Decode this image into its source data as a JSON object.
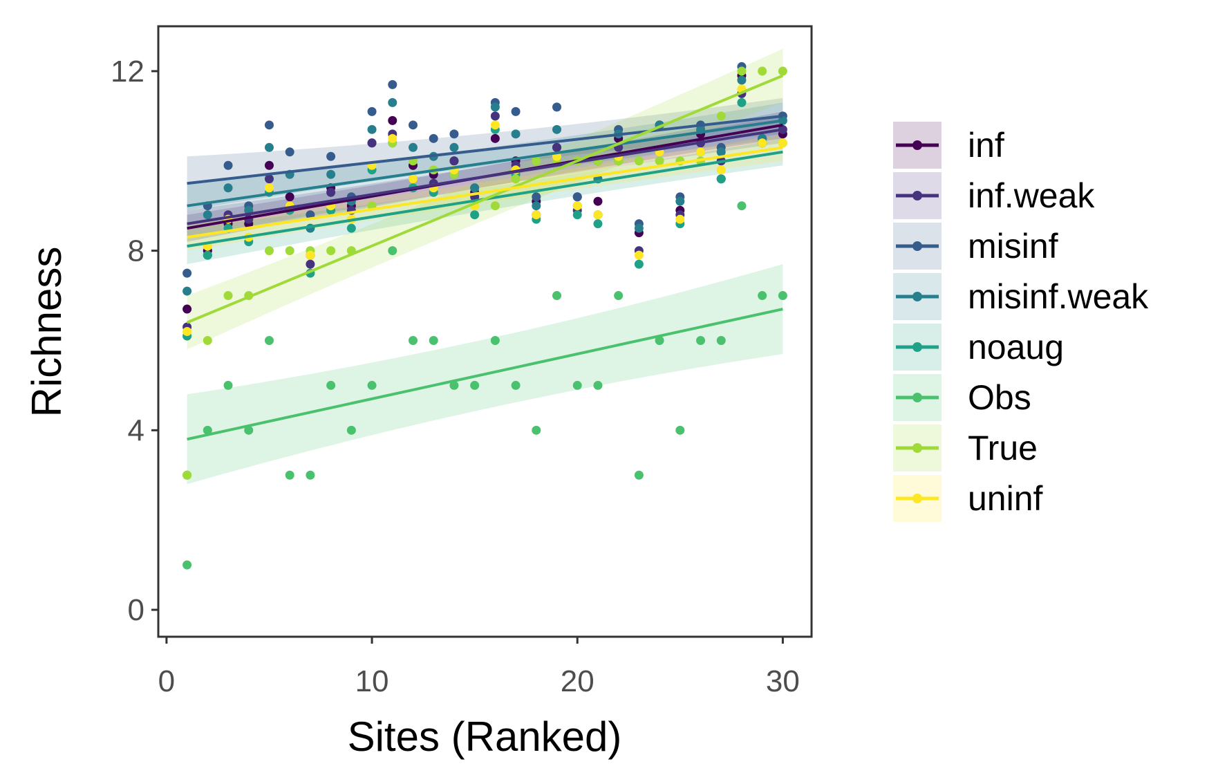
{
  "chart_data": {
    "type": "scatter",
    "xlabel": "Sites (Ranked)",
    "ylabel": "Richness",
    "xlim": [
      -0.4,
      31.4
    ],
    "ylim": [
      -0.6,
      13.0
    ],
    "xticks": [
      0,
      10,
      20,
      30
    ],
    "yticks": [
      0,
      4,
      8,
      12
    ],
    "grid": false,
    "legend_position": "right",
    "series": [
      {
        "name": "inf",
        "color": "#440154",
        "fit": {
          "x": [
            1,
            30
          ],
          "y": [
            8.5,
            10.8
          ],
          "band": [
            0.3,
            0.3
          ]
        },
        "points": [
          [
            1,
            6.7
          ],
          [
            2,
            8.0
          ],
          [
            3,
            8.6
          ],
          [
            4,
            8.6
          ],
          [
            5,
            9.9
          ],
          [
            6,
            9.2
          ],
          [
            7,
            7.9
          ],
          [
            8,
            9.4
          ],
          [
            9,
            9.0
          ],
          [
            10,
            10.4
          ],
          [
            11,
            10.9
          ],
          [
            12,
            9.9
          ],
          [
            13,
            9.7
          ],
          [
            14,
            10.0
          ],
          [
            15,
            9.3
          ],
          [
            16,
            10.5
          ],
          [
            17,
            10.0
          ],
          [
            18,
            9.1
          ],
          [
            19,
            10.3
          ],
          [
            20,
            9.2
          ],
          [
            21,
            9.1
          ],
          [
            22,
            10.5
          ],
          [
            23,
            8.4
          ],
          [
            24,
            10.8
          ],
          [
            25,
            8.9
          ],
          [
            26,
            10.6
          ],
          [
            27,
            9.6
          ],
          [
            28,
            11.9
          ],
          [
            29,
            10.4
          ],
          [
            30,
            10.6
          ]
        ]
      },
      {
        "name": "inf.weak",
        "color": "#46337e",
        "fit": {
          "x": [
            1,
            30
          ],
          "y": [
            8.6,
            10.7
          ],
          "band": [
            0.3,
            0.3
          ]
        },
        "points": [
          [
            1,
            6.3
          ],
          [
            2,
            7.9
          ],
          [
            3,
            8.8
          ],
          [
            4,
            8.7
          ],
          [
            5,
            9.6
          ],
          [
            6,
            9.0
          ],
          [
            7,
            7.7
          ],
          [
            8,
            9.3
          ],
          [
            9,
            8.9
          ],
          [
            10,
            10.4
          ],
          [
            11,
            10.6
          ],
          [
            12,
            9.6
          ],
          [
            13,
            9.5
          ],
          [
            14,
            10.0
          ],
          [
            15,
            9.2
          ],
          [
            16,
            11.0
          ],
          [
            17,
            9.9
          ],
          [
            18,
            8.8
          ],
          [
            19,
            10.3
          ],
          [
            20,
            8.9
          ],
          [
            21,
            8.8
          ],
          [
            22,
            10.3
          ],
          [
            23,
            8.0
          ],
          [
            24,
            10.8
          ],
          [
            25,
            8.8
          ],
          [
            26,
            10.4
          ],
          [
            27,
            10.0
          ],
          [
            28,
            11.5
          ],
          [
            29,
            10.5
          ],
          [
            30,
            10.7
          ]
        ]
      },
      {
        "name": "misinf",
        "color": "#365c8d",
        "fit": {
          "x": [
            1,
            30
          ],
          "y": [
            9.5,
            11.0
          ],
          "band": [
            0.6,
            0.4
          ]
        },
        "points": [
          [
            1,
            7.5
          ],
          [
            2,
            9.0
          ],
          [
            3,
            9.9
          ],
          [
            4,
            9.0
          ],
          [
            5,
            10.8
          ],
          [
            6,
            10.2
          ],
          [
            7,
            8.8
          ],
          [
            8,
            10.1
          ],
          [
            9,
            9.2
          ],
          [
            10,
            11.1
          ],
          [
            11,
            11.7
          ],
          [
            12,
            10.8
          ],
          [
            13,
            10.5
          ],
          [
            14,
            10.6
          ],
          [
            15,
            9.4
          ],
          [
            16,
            11.3
          ],
          [
            17,
            11.1
          ],
          [
            18,
            9.2
          ],
          [
            19,
            11.2
          ],
          [
            20,
            9.2
          ],
          [
            21,
            10.0
          ],
          [
            22,
            10.7
          ],
          [
            23,
            8.6
          ],
          [
            24,
            10.8
          ],
          [
            25,
            9.2
          ],
          [
            26,
            10.8
          ],
          [
            27,
            10.3
          ],
          [
            28,
            12.1
          ],
          [
            29,
            10.5
          ],
          [
            30,
            11.0
          ]
        ]
      },
      {
        "name": "misinf.weak",
        "color": "#277f8e",
        "fit": {
          "x": [
            1,
            30
          ],
          "y": [
            9.0,
            10.9
          ],
          "band": [
            0.5,
            0.4
          ]
        },
        "points": [
          [
            1,
            7.1
          ],
          [
            2,
            8.8
          ],
          [
            3,
            9.4
          ],
          [
            4,
            8.9
          ],
          [
            5,
            10.3
          ],
          [
            6,
            9.7
          ],
          [
            7,
            8.5
          ],
          [
            8,
            9.7
          ],
          [
            9,
            9.1
          ],
          [
            10,
            10.7
          ],
          [
            11,
            11.3
          ],
          [
            12,
            10.3
          ],
          [
            13,
            10.1
          ],
          [
            14,
            10.3
          ],
          [
            15,
            9.4
          ],
          [
            16,
            11.2
          ],
          [
            17,
            10.6
          ],
          [
            18,
            9.0
          ],
          [
            19,
            10.7
          ],
          [
            20,
            9.0
          ],
          [
            21,
            9.6
          ],
          [
            22,
            10.6
          ],
          [
            23,
            8.5
          ],
          [
            24,
            10.8
          ],
          [
            25,
            9.1
          ],
          [
            26,
            10.7
          ],
          [
            27,
            10.2
          ],
          [
            28,
            11.8
          ],
          [
            29,
            10.5
          ],
          [
            30,
            10.9
          ]
        ]
      },
      {
        "name": "noaug",
        "color": "#1fa187",
        "fit": {
          "x": [
            1,
            30
          ],
          "y": [
            8.1,
            10.2
          ],
          "band": [
            0.4,
            0.3
          ]
        },
        "points": [
          [
            1,
            6.1
          ],
          [
            2,
            7.9
          ],
          [
            3,
            8.5
          ],
          [
            4,
            8.2
          ],
          [
            5,
            9.3
          ],
          [
            6,
            8.9
          ],
          [
            7,
            7.5
          ],
          [
            8,
            8.9
          ],
          [
            9,
            8.5
          ],
          [
            10,
            9.8
          ],
          [
            11,
            10.4
          ],
          [
            12,
            9.4
          ],
          [
            13,
            9.3
          ],
          [
            14,
            9.7
          ],
          [
            15,
            8.8
          ],
          [
            16,
            10.7
          ],
          [
            17,
            9.7
          ],
          [
            18,
            8.7
          ],
          [
            19,
            10.0
          ],
          [
            20,
            8.8
          ],
          [
            21,
            8.6
          ],
          [
            22,
            10.0
          ],
          [
            23,
            7.7
          ],
          [
            24,
            10.2
          ],
          [
            25,
            8.6
          ],
          [
            26,
            10.2
          ],
          [
            27,
            9.6
          ],
          [
            28,
            11.3
          ],
          [
            29,
            10.4
          ],
          [
            30,
            10.4
          ]
        ]
      },
      {
        "name": "Obs",
        "color": "#4ac16d",
        "fit": {
          "x": [
            1,
            30
          ],
          "y": [
            3.8,
            6.7
          ],
          "band": [
            1.0,
            1.0
          ]
        },
        "points": [
          [
            1,
            3.0
          ],
          [
            1,
            1.0
          ],
          [
            2,
            4.0
          ],
          [
            3,
            5.0
          ],
          [
            4,
            4.0
          ],
          [
            5,
            6.0
          ],
          [
            6,
            3.0
          ],
          [
            7,
            3.0
          ],
          [
            8,
            5.0
          ],
          [
            9,
            4.0
          ],
          [
            10,
            5.0
          ],
          [
            11,
            8.0
          ],
          [
            12,
            6.0
          ],
          [
            13,
            6.0
          ],
          [
            14,
            5.0
          ],
          [
            15,
            5.0
          ],
          [
            16,
            6.0
          ],
          [
            17,
            5.0
          ],
          [
            18,
            4.0
          ],
          [
            19,
            7.0
          ],
          [
            20,
            5.0
          ],
          [
            21,
            5.0
          ],
          [
            22,
            7.0
          ],
          [
            23,
            3.0
          ],
          [
            24,
            6.0
          ],
          [
            25,
            4.0
          ],
          [
            26,
            6.0
          ],
          [
            27,
            6.0
          ],
          [
            28,
            9.0
          ],
          [
            29,
            7.0
          ],
          [
            30,
            7.0
          ]
        ]
      },
      {
        "name": "True",
        "color": "#a0da39",
        "fit": {
          "x": [
            1,
            30
          ],
          "y": [
            6.4,
            11.9
          ],
          "band": [
            0.6,
            0.6
          ]
        },
        "points": [
          [
            1,
            3.0
          ],
          [
            2,
            6.0
          ],
          [
            3,
            7.0
          ],
          [
            4,
            7.0
          ],
          [
            5,
            8.0
          ],
          [
            6,
            8.0
          ],
          [
            7,
            8.0
          ],
          [
            8,
            8.0
          ],
          [
            9,
            8.0
          ],
          [
            10,
            9.0
          ],
          [
            11,
            10.4
          ],
          [
            12,
            10.0
          ],
          [
            13,
            9.8
          ],
          [
            14,
            9.7
          ],
          [
            15,
            9.0
          ],
          [
            16,
            9.0
          ],
          [
            17,
            9.6
          ],
          [
            18,
            10.0
          ],
          [
            19,
            10.0
          ],
          [
            20,
            10.0
          ],
          [
            21,
            10.0
          ],
          [
            22,
            10.0
          ],
          [
            23,
            10.0
          ],
          [
            24,
            10.0
          ],
          [
            25,
            10.0
          ],
          [
            26,
            10.0
          ],
          [
            27,
            11.0
          ],
          [
            28,
            12.0
          ],
          [
            29,
            12.0
          ],
          [
            30,
            12.0
          ]
        ]
      },
      {
        "name": "uninf",
        "color": "#fde725",
        "fit": {
          "x": [
            1,
            30
          ],
          "y": [
            8.3,
            10.3
          ],
          "band": [
            0.3,
            0.3
          ]
        },
        "points": [
          [
            1,
            6.2
          ],
          [
            2,
            8.1
          ],
          [
            3,
            8.7
          ],
          [
            4,
            8.3
          ],
          [
            5,
            9.4
          ],
          [
            6,
            9.0
          ],
          [
            7,
            7.9
          ],
          [
            8,
            9.0
          ],
          [
            9,
            8.7
          ],
          [
            10,
            9.9
          ],
          [
            11,
            10.5
          ],
          [
            12,
            9.6
          ],
          [
            13,
            9.4
          ],
          [
            14,
            9.8
          ],
          [
            15,
            9.0
          ],
          [
            16,
            10.8
          ],
          [
            17,
            9.8
          ],
          [
            18,
            8.8
          ],
          [
            19,
            10.1
          ],
          [
            20,
            9.0
          ],
          [
            21,
            8.8
          ],
          [
            22,
            10.1
          ],
          [
            23,
            7.9
          ],
          [
            24,
            10.2
          ],
          [
            25,
            8.7
          ],
          [
            26,
            10.2
          ],
          [
            27,
            9.8
          ],
          [
            28,
            11.6
          ],
          [
            29,
            10.4
          ],
          [
            30,
            10.4
          ]
        ]
      }
    ]
  }
}
